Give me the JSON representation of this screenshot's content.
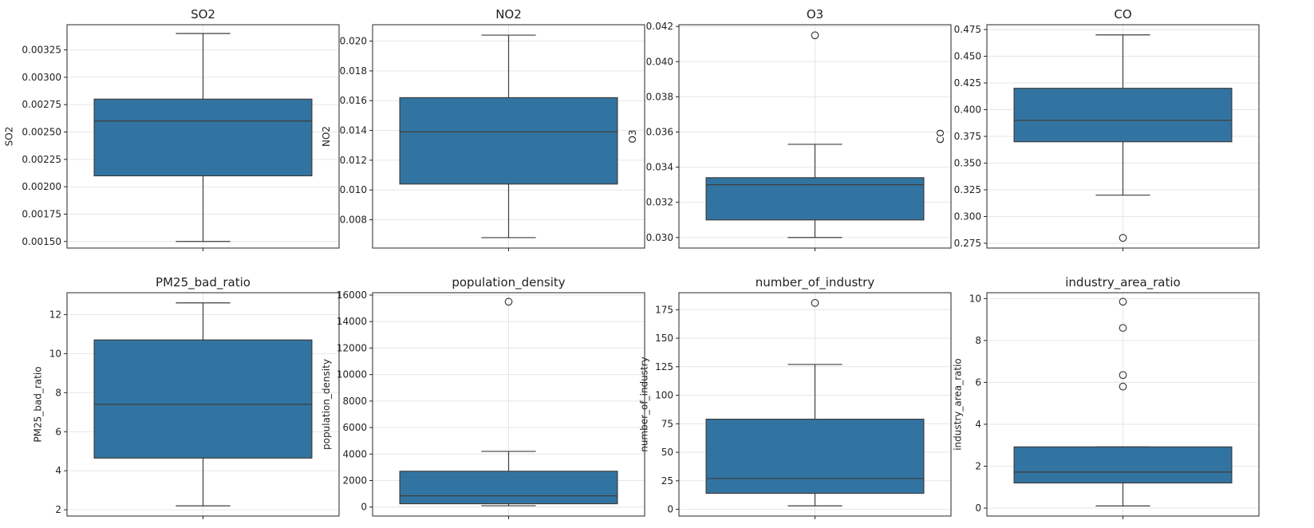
{
  "chart_data": [
    {
      "type": "box",
      "title": "SO2",
      "ylabel": "SO2",
      "ylim": [
        0.00144,
        0.00348
      ],
      "yticks": [
        0.0015,
        0.00175,
        0.002,
        0.00225,
        0.0025,
        0.00275,
        0.003,
        0.00325
      ],
      "ytick_labels": [
        "0.00150",
        "0.00175",
        "0.00200",
        "0.00225",
        "0.00250",
        "0.00275",
        "0.00300",
        "0.00325"
      ],
      "box": {
        "whisker_low": 0.0015,
        "q1": 0.0021,
        "median": 0.0026,
        "q3": 0.0028,
        "whisker_high": 0.0034,
        "outliers": []
      },
      "color": "#3274a1",
      "grid": true
    },
    {
      "type": "box",
      "title": "NO2",
      "ylabel": "NO2",
      "ylim": [
        0.0061,
        0.0211
      ],
      "yticks": [
        0.008,
        0.01,
        0.012,
        0.014,
        0.016,
        0.018,
        0.02
      ],
      "ytick_labels": [
        "0.008",
        "0.010",
        "0.012",
        "0.014",
        "0.016",
        "0.018",
        "0.020"
      ],
      "box": {
        "whisker_low": 0.0068,
        "q1": 0.0104,
        "median": 0.0139,
        "q3": 0.0162,
        "whisker_high": 0.0204,
        "outliers": []
      },
      "color": "#3274a1",
      "grid": true
    },
    {
      "type": "box",
      "title": "O3",
      "ylabel": "O3",
      "ylim": [
        0.0294,
        0.0421
      ],
      "yticks": [
        0.03,
        0.032,
        0.034,
        0.036,
        0.038,
        0.04,
        0.042
      ],
      "ytick_labels": [
        "0.030",
        "0.032",
        "0.034",
        "0.036",
        "0.038",
        "0.040",
        "0.042"
      ],
      "box": {
        "whisker_low": 0.03,
        "q1": 0.031,
        "median": 0.033,
        "q3": 0.0334,
        "whisker_high": 0.0353,
        "outliers": [
          0.0415
        ]
      },
      "color": "#3274a1",
      "grid": true
    },
    {
      "type": "box",
      "title": "CO",
      "ylabel": "CO",
      "ylim": [
        0.2705,
        0.4795
      ],
      "yticks": [
        0.275,
        0.3,
        0.325,
        0.35,
        0.375,
        0.4,
        0.425,
        0.45,
        0.475
      ],
      "ytick_labels": [
        "0.275",
        "0.300",
        "0.325",
        "0.350",
        "0.375",
        "0.400",
        "0.425",
        "0.450",
        "0.475"
      ],
      "box": {
        "whisker_low": 0.32,
        "q1": 0.37,
        "median": 0.39,
        "q3": 0.42,
        "whisker_high": 0.47,
        "outliers": [
          0.28
        ]
      },
      "color": "#3274a1",
      "grid": true
    },
    {
      "type": "box",
      "title": "PM25_bad_ratio",
      "ylabel": "PM25_bad_ratio",
      "ylim": [
        1.68,
        13.12
      ],
      "yticks": [
        2,
        4,
        6,
        8,
        10,
        12
      ],
      "ytick_labels": [
        "2",
        "4",
        "6",
        "8",
        "10",
        "12"
      ],
      "box": {
        "whisker_low": 2.2,
        "q1": 4.65,
        "median": 7.4,
        "q3": 10.7,
        "whisker_high": 12.6,
        "outliers": []
      },
      "color": "#3274a1",
      "grid": true
    },
    {
      "type": "box",
      "title": "population_density",
      "ylabel": "population_density",
      "ylim": [
        -680,
        16180
      ],
      "yticks": [
        0,
        2000,
        4000,
        6000,
        8000,
        10000,
        12000,
        14000,
        16000
      ],
      "ytick_labels": [
        "0",
        "2000",
        "4000",
        "6000",
        "8000",
        "10000",
        "12000",
        "14000",
        "16000"
      ],
      "box": {
        "whisker_low": 100,
        "q1": 250,
        "median": 850,
        "q3": 2700,
        "whisker_high": 4200,
        "outliers": [
          15500
        ]
      },
      "color": "#3274a1",
      "grid": true
    },
    {
      "type": "box",
      "title": "number_of_industry",
      "ylabel": "number_of_industry",
      "ylim": [
        -5.9,
        189.9
      ],
      "yticks": [
        0,
        25,
        50,
        75,
        100,
        125,
        150,
        175
      ],
      "ytick_labels": [
        "0",
        "25",
        "50",
        "75",
        "100",
        "125",
        "150",
        "175"
      ],
      "box": {
        "whisker_low": 3,
        "q1": 14,
        "median": 27,
        "q3": 79,
        "whisker_high": 127,
        "outliers": [
          181
        ]
      },
      "color": "#3274a1",
      "grid": true
    },
    {
      "type": "box",
      "title": "industry_area_ratio",
      "ylabel": "industry_area_ratio",
      "ylim": [
        -0.38,
        10.28
      ],
      "yticks": [
        0,
        2,
        4,
        6,
        8,
        10
      ],
      "ytick_labels": [
        "0",
        "2",
        "4",
        "6",
        "8",
        "10"
      ],
      "box": {
        "whisker_low": 0.1,
        "q1": 1.2,
        "median": 1.72,
        "q3": 2.92,
        "whisker_high": 2.92,
        "outliers": [
          5.8,
          6.35,
          8.6,
          9.85
        ]
      },
      "color": "#3274a1",
      "grid": true
    }
  ]
}
